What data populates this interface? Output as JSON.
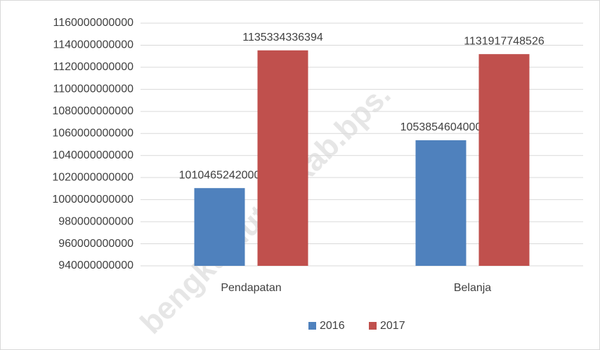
{
  "chart_data": {
    "type": "bar",
    "categories": [
      "Pendapatan",
      "Belanja"
    ],
    "series": [
      {
        "name": "2016",
        "color": "#4f81bd",
        "values": [
          1010465242000,
          1053854604000
        ]
      },
      {
        "name": "2017",
        "color": "#c0504d",
        "values": [
          1135334336394,
          1131917748526
        ]
      }
    ],
    "ylim": [
      940000000000,
      1160000000000
    ],
    "yticks": [
      940000000000,
      960000000000,
      980000000000,
      1000000000000,
      1020000000000,
      1040000000000,
      1060000000000,
      1080000000000,
      1100000000000,
      1120000000000,
      1140000000000,
      1160000000000
    ],
    "grid": true,
    "legend": "bottom",
    "watermark": "bengkuluutarakab.bps."
  }
}
